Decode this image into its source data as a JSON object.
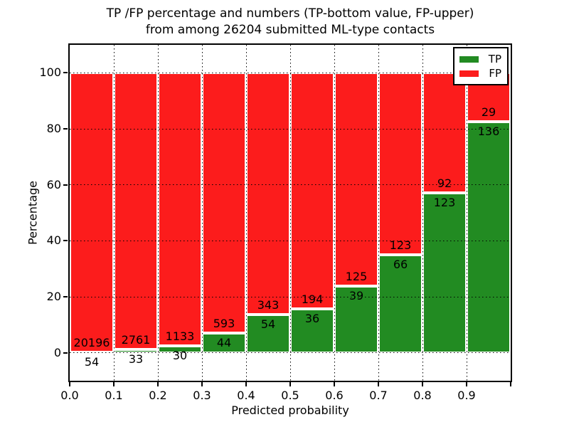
{
  "title": {
    "line1": "TP /FP percentage and numbers (TP-bottom value, FP-upper)",
    "line2": "from among 26204 submitted ML-type contacts"
  },
  "chart_data": {
    "type": "bar",
    "stacked": true,
    "title": "TP /FP percentage and numbers (TP-bottom value, FP-upper) from among 26204 submitted ML-type contacts",
    "xlabel": "Predicted probability",
    "ylabel": "Percentage",
    "xlim": [
      0.0,
      1.0
    ],
    "ylim": [
      -10,
      110
    ],
    "xticks": [
      "0.0",
      "0.1",
      "0.2",
      "0.3",
      "0.4",
      "0.5",
      "0.6",
      "0.7",
      "0.8",
      "0.9"
    ],
    "yticks": [
      0,
      20,
      40,
      60,
      80,
      100
    ],
    "grid": true,
    "legend": {
      "position": "upper-right",
      "entries": [
        {
          "label": "TP",
          "color": "#228b22"
        },
        {
          "label": "FP",
          "color": "#fc1c1c"
        }
      ]
    },
    "bars": [
      {
        "bin_start": 0.0,
        "bin_end": 0.1,
        "tp_count": 54,
        "fp_count": 20196
      },
      {
        "bin_start": 0.1,
        "bin_end": 0.2,
        "tp_count": 33,
        "fp_count": 2761
      },
      {
        "bin_start": 0.2,
        "bin_end": 0.3,
        "tp_count": 30,
        "fp_count": 1133
      },
      {
        "bin_start": 0.3,
        "bin_end": 0.4,
        "tp_count": 44,
        "fp_count": 593
      },
      {
        "bin_start": 0.4,
        "bin_end": 0.5,
        "tp_count": 54,
        "fp_count": 343
      },
      {
        "bin_start": 0.5,
        "bin_end": 0.6,
        "tp_count": 36,
        "fp_count": 194
      },
      {
        "bin_start": 0.6,
        "bin_end": 0.7,
        "tp_count": 39,
        "fp_count": 125
      },
      {
        "bin_start": 0.7,
        "bin_end": 0.8,
        "tp_count": 66,
        "fp_count": 123
      },
      {
        "bin_start": 0.8,
        "bin_end": 0.9,
        "tp_count": 123,
        "fp_count": 92
      },
      {
        "bin_start": 0.9,
        "bin_end": 1.0,
        "tp_count": 136,
        "fp_count": 29
      }
    ]
  },
  "colors": {
    "tp": "#228b22",
    "fp": "#fc1c1c",
    "background": "#ffffff",
    "text": "#000000"
  }
}
